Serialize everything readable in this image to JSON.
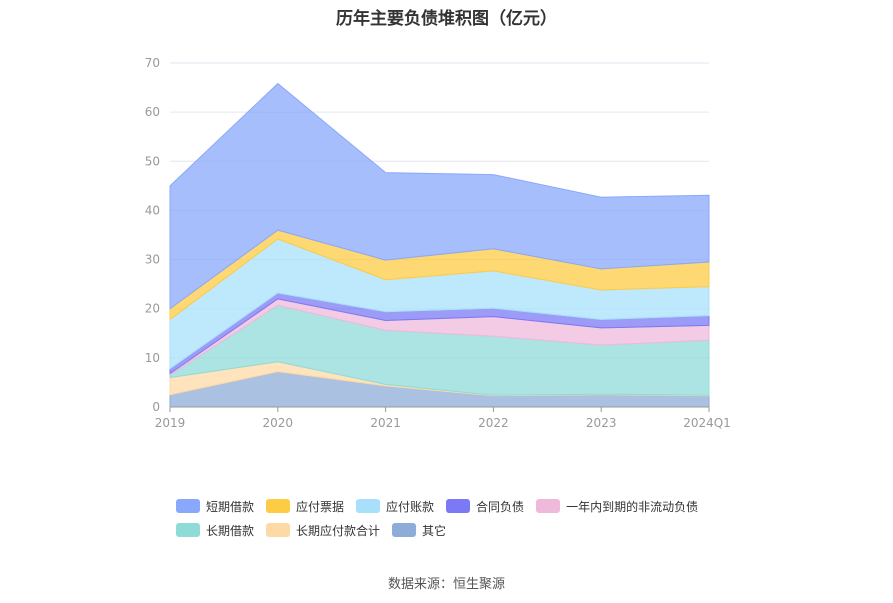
{
  "chart_data": {
    "type": "area",
    "stacked": true,
    "title": "历年主要负债堆积图（亿元）",
    "categories": [
      "2019",
      "2020",
      "2021",
      "2022",
      "2023",
      "2024Q1"
    ],
    "ylim": [
      0,
      70
    ],
    "yticks": [
      0,
      10,
      20,
      30,
      40,
      50,
      60,
      70
    ],
    "grid": true,
    "legend_position": "bottom",
    "series": [
      {
        "name": "其它",
        "color": "#8eacd8",
        "values": [
          2.5,
          7.2,
          4.3,
          2.3,
          2.5,
          2.3
        ]
      },
      {
        "name": "长期应付款合计",
        "color": "#fddaa5",
        "values": [
          3.5,
          2.0,
          0.3,
          0.1,
          0.1,
          0.1
        ]
      },
      {
        "name": "长期借款",
        "color": "#8fdbd8",
        "values": [
          0.5,
          11.5,
          11.0,
          12.0,
          10.0,
          11.2
        ]
      },
      {
        "name": "一年内到期的非流动负债",
        "color": "#efb9dc",
        "values": [
          0.3,
          1.3,
          2.0,
          4.0,
          3.5,
          3.0
        ]
      },
      {
        "name": "合同负债",
        "color": "#7b79f4",
        "values": [
          1.0,
          1.2,
          1.8,
          1.7,
          1.7,
          2.0
        ]
      },
      {
        "name": "应付账款",
        "color": "#a8e0fb",
        "values": [
          10.0,
          11.0,
          6.5,
          7.6,
          6.0,
          5.9
        ]
      },
      {
        "name": "应付票据",
        "color": "#fecb44",
        "values": [
          2.2,
          1.8,
          4.0,
          4.5,
          4.3,
          5.0
        ]
      },
      {
        "name": "短期借款",
        "color": "#8aa8fb",
        "values": [
          25.0,
          29.8,
          17.8,
          15.1,
          14.6,
          13.6
        ]
      }
    ]
  },
  "legend_rows": [
    [
      {
        "name": "短期借款",
        "color": "#8aa8fb"
      },
      {
        "name": "应付票据",
        "color": "#fecb44"
      },
      {
        "name": "应付账款",
        "color": "#a8e0fb"
      },
      {
        "name": "合同负债",
        "color": "#7b79f4"
      },
      {
        "name": "一年内到期的非流动负债",
        "color": "#efb9dc"
      }
    ],
    [
      {
        "name": "长期借款",
        "color": "#8fdbd8"
      },
      {
        "name": "长期应付款合计",
        "color": "#fddaa5"
      },
      {
        "name": "其它",
        "color": "#8eacd8"
      }
    ]
  ],
  "source": "数据来源：恒生聚源"
}
